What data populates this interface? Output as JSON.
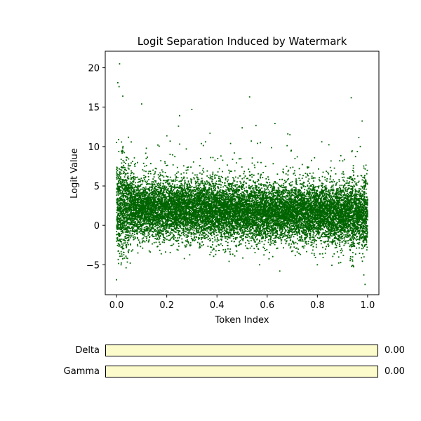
{
  "chart_data": {
    "type": "scatter",
    "title": "Logit Separation Induced by Watermark",
    "xlabel": "Token Index",
    "ylabel": "Logit Value",
    "xlim": [
      -0.045,
      1.045
    ],
    "ylim": [
      -8.8,
      22.1
    ],
    "xticks": [
      0.0,
      0.2,
      0.4,
      0.6,
      0.8,
      1.0
    ],
    "xtick_labels": [
      "0.0",
      "0.2",
      "0.4",
      "0.6",
      "0.8",
      "1.0"
    ],
    "yticks": [
      -5,
      0,
      5,
      10,
      15,
      20
    ],
    "ytick_labels": [
      "−5",
      "0",
      "5",
      "10",
      "15",
      "20"
    ],
    "grid": false,
    "color": "#006400",
    "point_count": 15000,
    "outliers": [
      {
        "x": 0.012,
        "y": 20.5
      },
      {
        "x": 0.005,
        "y": 18.1
      },
      {
        "x": 0.01,
        "y": 17.6
      },
      {
        "x": 0.025,
        "y": 16.4
      },
      {
        "x": 0.53,
        "y": 16.3
      },
      {
        "x": 0.935,
        "y": 16.2
      },
      {
        "x": 0.1,
        "y": 15.4
      },
      {
        "x": 0.3,
        "y": 14.7
      },
      {
        "x": 0.0,
        "y": -6.9
      },
      {
        "x": 0.99,
        "y": -7.5
      },
      {
        "x": 0.985,
        "y": -6.3
      },
      {
        "x": 0.65,
        "y": -5.8
      },
      {
        "x": 0.57,
        "y": -5.0
      },
      {
        "x": 0.8,
        "y": -5.0
      }
    ]
  },
  "sliders": [
    {
      "label": "Delta",
      "value": 0.0,
      "value_text": "0.00"
    },
    {
      "label": "Gamma",
      "value": 0.0,
      "value_text": "0.00"
    }
  ]
}
